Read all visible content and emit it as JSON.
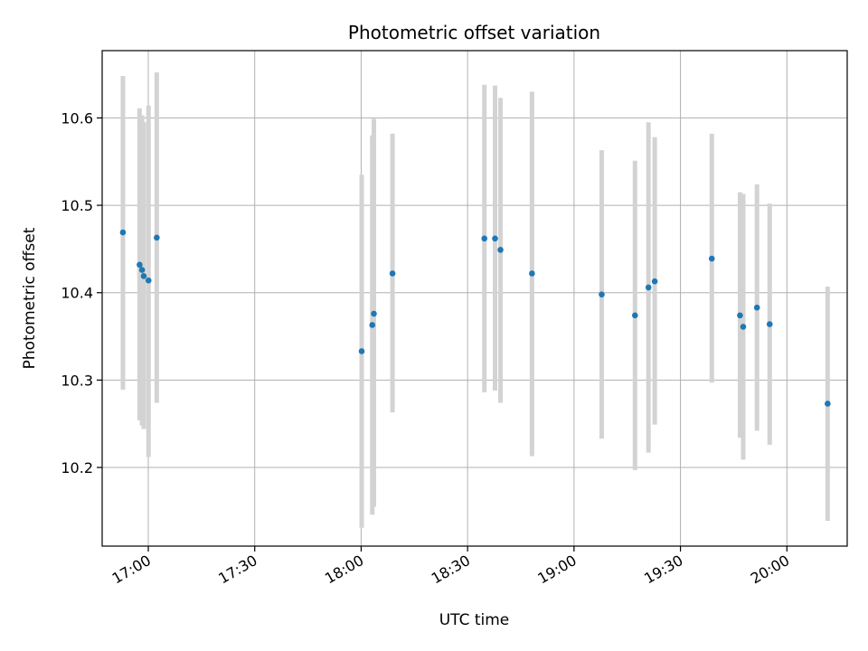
{
  "chart_data": {
    "type": "scatter",
    "title": "Photometric offset variation",
    "xlabel": "UTC time",
    "ylabel": "Photometric offset",
    "xlim": [
      "16:47",
      "20:17"
    ],
    "ylim": [
      10.11,
      10.677
    ],
    "x_ticks": [
      "17:00",
      "17:30",
      "18:00",
      "18:30",
      "19:00",
      "19:30",
      "20:00"
    ],
    "y_ticks": [
      10.2,
      10.3,
      10.4,
      10.5,
      10.6
    ],
    "grid": true,
    "colors": {
      "points": "#1f77b4",
      "error_bars": "#d3d3d3",
      "grid": "#b0b0b0"
    },
    "points": [
      {
        "x": "16:52:51",
        "y": 10.469,
        "err_low": 10.289,
        "err_high": 10.648
      },
      {
        "x": "16:57:33",
        "y": 10.432,
        "err_low": 10.254,
        "err_high": 10.611
      },
      {
        "x": "16:58:15",
        "y": 10.426,
        "err_low": 10.248,
        "err_high": 10.603
      },
      {
        "x": "16:58:43",
        "y": 10.419,
        "err_low": 10.244,
        "err_high": 10.595
      },
      {
        "x": "17:00:04",
        "y": 10.414,
        "err_low": 10.212,
        "err_high": 10.614
      },
      {
        "x": "17:02:23",
        "y": 10.463,
        "err_low": 10.274,
        "err_high": 10.652
      },
      {
        "x": "18:00:09",
        "y": 10.333,
        "err_low": 10.131,
        "err_high": 10.535
      },
      {
        "x": "18:03:08",
        "y": 10.363,
        "err_low": 10.146,
        "err_high": 10.58
      },
      {
        "x": "18:03:35",
        "y": 10.376,
        "err_low": 10.155,
        "err_high": 10.599
      },
      {
        "x": "18:08:50",
        "y": 10.422,
        "err_low": 10.263,
        "err_high": 10.582
      },
      {
        "x": "18:34:44",
        "y": 10.462,
        "err_low": 10.286,
        "err_high": 10.638
      },
      {
        "x": "18:37:44",
        "y": 10.462,
        "err_low": 10.288,
        "err_high": 10.637
      },
      {
        "x": "18:39:16",
        "y": 10.449,
        "err_low": 10.274,
        "err_high": 10.623
      },
      {
        "x": "18:48:09",
        "y": 10.422,
        "err_low": 10.213,
        "err_high": 10.63
      },
      {
        "x": "19:07:48",
        "y": 10.398,
        "err_low": 10.233,
        "err_high": 10.563
      },
      {
        "x": "19:17:11",
        "y": 10.374,
        "err_low": 10.197,
        "err_high": 10.551
      },
      {
        "x": "19:20:59",
        "y": 10.406,
        "err_low": 10.217,
        "err_high": 10.595
      },
      {
        "x": "19:22:45",
        "y": 10.413,
        "err_low": 10.249,
        "err_high": 10.578
      },
      {
        "x": "19:38:50",
        "y": 10.439,
        "err_low": 10.297,
        "err_high": 10.582
      },
      {
        "x": "19:46:47",
        "y": 10.374,
        "err_low": 10.234,
        "err_high": 10.515
      },
      {
        "x": "19:47:41",
        "y": 10.361,
        "err_low": 10.209,
        "err_high": 10.513
      },
      {
        "x": "19:51:34",
        "y": 10.383,
        "err_low": 10.242,
        "err_high": 10.524
      },
      {
        "x": "19:55:09",
        "y": 10.364,
        "err_low": 10.226,
        "err_high": 10.502
      },
      {
        "x": "20:11:29",
        "y": 10.273,
        "err_low": 10.139,
        "err_high": 10.407
      }
    ]
  }
}
